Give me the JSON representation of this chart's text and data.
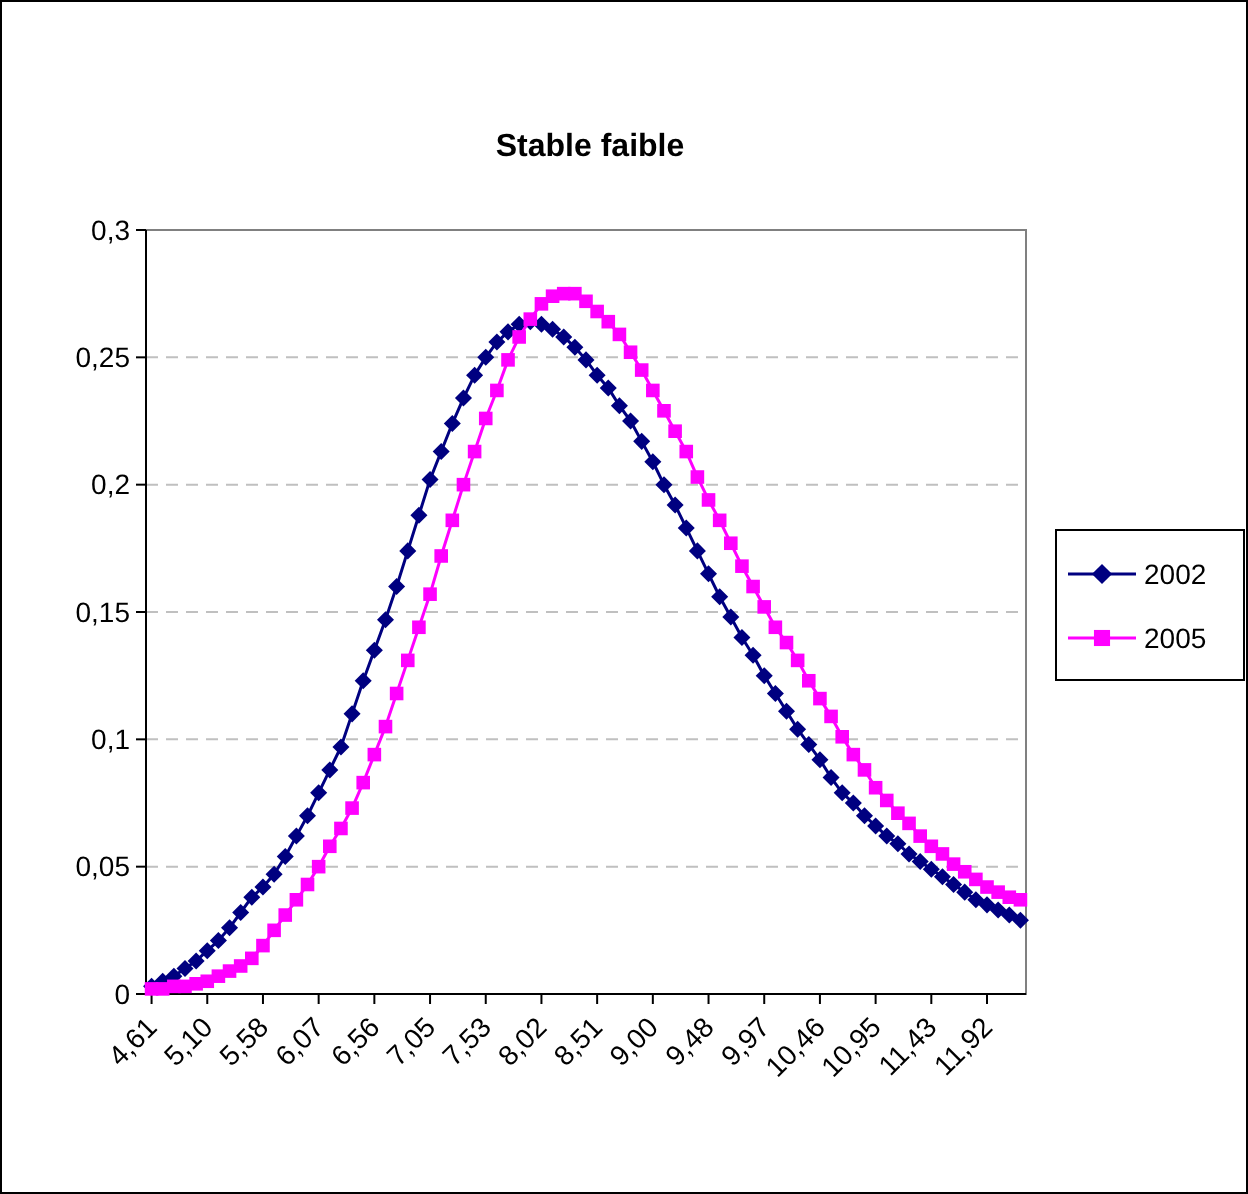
{
  "chart_data": {
    "type": "line",
    "title": "Stable faible",
    "categories": [
      "4,61",
      null,
      null,
      null,
      null,
      "5,10",
      null,
      null,
      null,
      null,
      "5,58",
      null,
      null,
      null,
      null,
      "6,07",
      null,
      null,
      null,
      null,
      "6,56",
      null,
      null,
      null,
      null,
      "7,05",
      null,
      null,
      null,
      null,
      "7,53",
      null,
      null,
      null,
      null,
      "8,02",
      null,
      null,
      null,
      null,
      "8,51",
      null,
      null,
      null,
      null,
      "9,00",
      null,
      null,
      null,
      null,
      "9,48",
      null,
      null,
      null,
      null,
      "9,97",
      null,
      null,
      null,
      null,
      "10,46",
      null,
      null,
      null,
      null,
      "10,95",
      null,
      null,
      null,
      null,
      "11,43",
      null,
      null,
      null,
      null,
      "11,92",
      null,
      null,
      null
    ],
    "series": [
      {
        "name": "2002",
        "color": "#000080",
        "marker": "diamond",
        "values": [
          0.003,
          0.005,
          0.007,
          0.01,
          0.013,
          0.017,
          0.021,
          0.026,
          0.032,
          0.038,
          0.042,
          0.047,
          0.054,
          0.062,
          0.07,
          0.079,
          0.088,
          0.097,
          0.11,
          0.123,
          0.135,
          0.147,
          0.16,
          0.174,
          0.188,
          0.202,
          0.213,
          0.224,
          0.234,
          0.243,
          0.25,
          0.256,
          0.26,
          0.263,
          0.264,
          0.263,
          0.261,
          0.258,
          0.254,
          0.249,
          0.243,
          0.238,
          0.231,
          0.225,
          0.217,
          0.209,
          0.2,
          0.192,
          0.183,
          0.174,
          0.165,
          0.156,
          0.148,
          0.14,
          0.133,
          0.125,
          0.118,
          0.111,
          0.104,
          0.098,
          0.092,
          0.085,
          0.079,
          0.075,
          0.07,
          0.066,
          0.062,
          0.059,
          0.055,
          0.052,
          0.049,
          0.046,
          0.043,
          0.04,
          0.037,
          0.035,
          0.033,
          0.031,
          0.029
        ]
      },
      {
        "name": "2005",
        "color": "#ff00ff",
        "marker": "square",
        "values": [
          0.002,
          0.002,
          0.003,
          0.003,
          0.004,
          0.005,
          0.007,
          0.009,
          0.011,
          0.014,
          0.019,
          0.025,
          0.031,
          0.037,
          0.043,
          0.05,
          0.058,
          0.065,
          0.073,
          0.083,
          0.094,
          0.105,
          0.118,
          0.131,
          0.144,
          0.157,
          0.172,
          0.186,
          0.2,
          0.213,
          0.226,
          0.237,
          0.249,
          0.258,
          0.265,
          0.271,
          0.274,
          0.275,
          0.275,
          0.272,
          0.268,
          0.264,
          0.259,
          0.252,
          0.245,
          0.237,
          0.229,
          0.221,
          0.213,
          0.203,
          0.194,
          0.186,
          0.177,
          0.168,
          0.16,
          0.152,
          0.144,
          0.138,
          0.131,
          0.123,
          0.116,
          0.109,
          0.101,
          0.094,
          0.088,
          0.081,
          0.076,
          0.071,
          0.067,
          0.062,
          0.058,
          0.055,
          0.051,
          0.048,
          0.045,
          0.042,
          0.04,
          0.038,
          0.037
        ]
      }
    ],
    "ylim": [
      0,
      0.3
    ],
    "yticks": [
      0,
      {
        "value": 0.05,
        "label": "0,05"
      },
      {
        "value": 0.1,
        "label": "0,1"
      },
      {
        "value": 0.15,
        "label": "0,15"
      },
      {
        "value": 0.2,
        "label": "0,2"
      },
      {
        "value": 0.25,
        "label": "0,25"
      },
      {
        "value": 0.3,
        "label": "0,3"
      }
    ],
    "grid": "y",
    "legend": "right",
    "line_style": "solid"
  }
}
